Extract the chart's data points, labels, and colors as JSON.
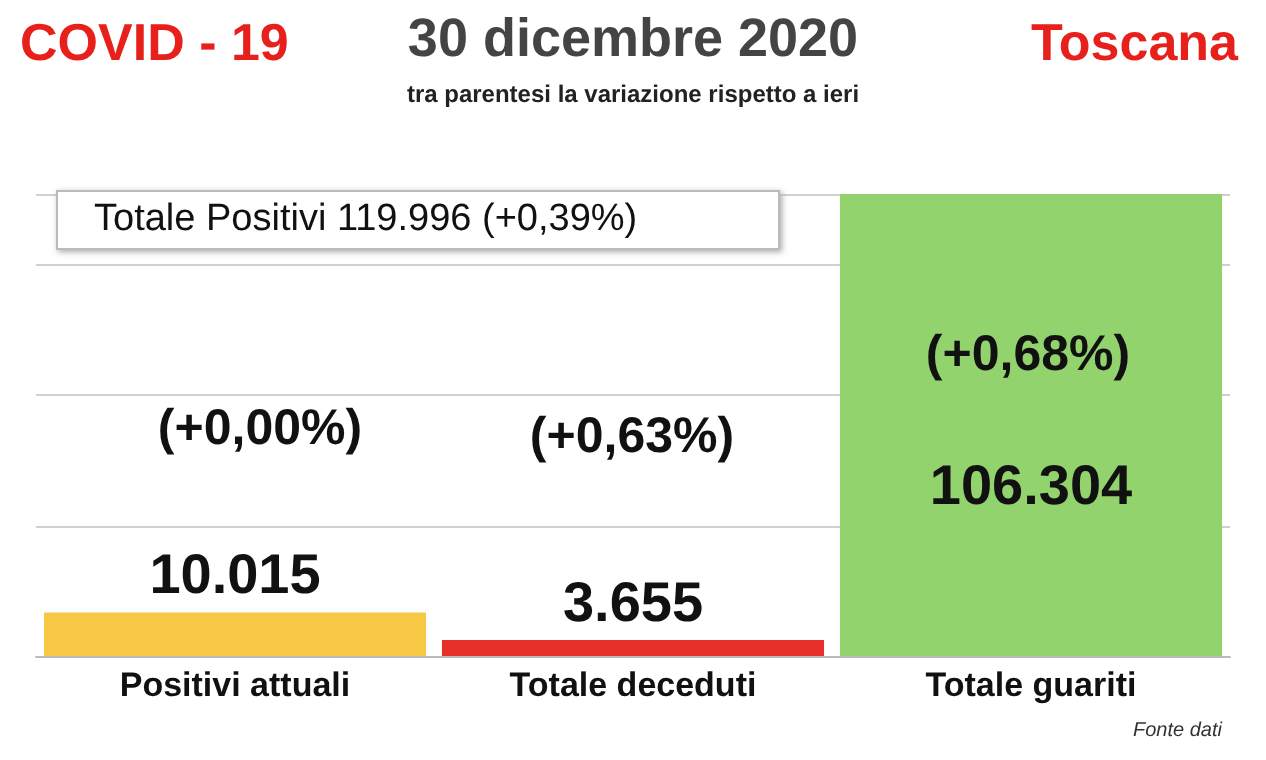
{
  "chart_data": {
    "type": "bar",
    "title": "30 dicembre 2020",
    "subtitle": "tra parentesi la variazione rispetto a ieri",
    "categories": [
      "Positivi attuali",
      "Totale deceduti",
      "Totale guariti"
    ],
    "values": [
      10015,
      3655,
      106304
    ],
    "colors": [
      "#f7c844",
      "#e8302a",
      "#92d36e"
    ],
    "value_labels": [
      "10.015",
      "3.655",
      "106.304"
    ],
    "annotations": [
      "COVID - 19",
      "Toscana",
      "Totale Positivi   119.996 (+0,39%)",
      "(+0,00%)",
      "(+0,63%)",
      "(+0,68%)",
      "Fonte dati"
    ],
    "grid": "y"
  }
}
